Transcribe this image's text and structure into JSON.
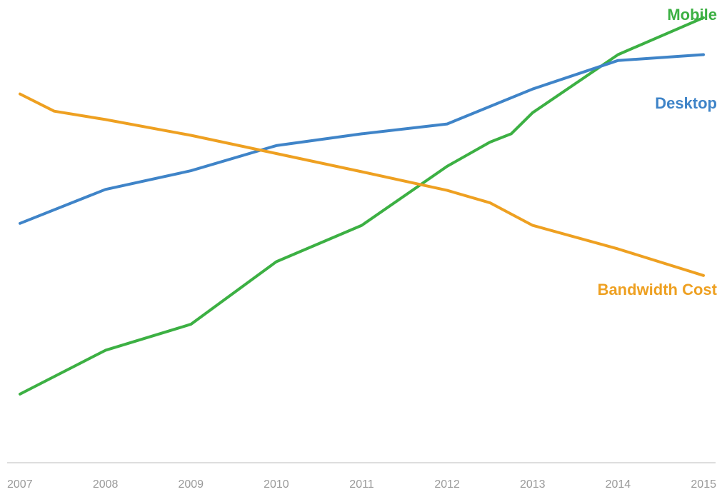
{
  "chart_data": {
    "type": "line",
    "title": "",
    "xlabel": "",
    "ylabel": "",
    "x": [
      2007,
      2008,
      2009,
      2010,
      2011,
      2012,
      2013,
      2014,
      2015
    ],
    "xlim": [
      2007,
      2015
    ],
    "ylim": [
      0,
      100
    ],
    "grid": false,
    "legend": "inline-right",
    "series": [
      {
        "name": "Mobile",
        "color": "#3cb043",
        "points": [
          [
            2007,
            19.9
          ],
          [
            2008,
            28.8
          ],
          [
            2009,
            34.1
          ],
          [
            2010,
            46.8
          ],
          [
            2011,
            54.2
          ],
          [
            2012,
            66.2
          ],
          [
            2012.5,
            71.1
          ],
          [
            2012.75,
            72.8
          ],
          [
            2013,
            77.1
          ],
          [
            2014,
            88.9
          ],
          [
            2015,
            96.4
          ]
        ]
      },
      {
        "name": "Desktop",
        "color": "#3f84c8",
        "points": [
          [
            2007,
            54.6
          ],
          [
            2008,
            61.5
          ],
          [
            2009,
            65.3
          ],
          [
            2010,
            70.4
          ],
          [
            2011,
            72.8
          ],
          [
            2012,
            74.8
          ],
          [
            2013,
            81.9
          ],
          [
            2014,
            87.7
          ],
          [
            2015,
            88.9
          ]
        ]
      },
      {
        "name": "Bandwidth Cost",
        "color": "#eea021",
        "points": [
          [
            2007,
            80.9
          ],
          [
            2007.4,
            77.4
          ],
          [
            2008,
            75.7
          ],
          [
            2009,
            72.5
          ],
          [
            2010,
            68.8
          ],
          [
            2011,
            65.1
          ],
          [
            2012,
            61.3
          ],
          [
            2012.5,
            58.8
          ],
          [
            2013,
            54.2
          ],
          [
            2014,
            49.4
          ],
          [
            2015,
            44.0
          ]
        ]
      }
    ]
  }
}
